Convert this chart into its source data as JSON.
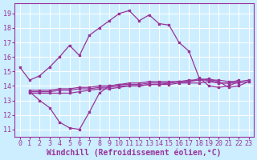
{
  "background_color": "#cceeff",
  "grid_color": "#ffffff",
  "line_color": "#993399",
  "xlabel": "Windchill (Refroidissement éolien,°C)",
  "xlabel_fontsize": 7.0,
  "tick_fontsize": 6.0,
  "yticks": [
    11,
    12,
    13,
    14,
    15,
    16,
    17,
    18,
    19
  ],
  "ylim": [
    10.5,
    19.7
  ],
  "xlim": [
    -0.5,
    23.5
  ],
  "xticks": [
    0,
    1,
    2,
    3,
    4,
    5,
    6,
    7,
    8,
    9,
    10,
    11,
    12,
    13,
    14,
    15,
    16,
    17,
    18,
    19,
    20,
    21,
    22,
    23
  ],
  "series": [
    [
      15.3,
      14.4,
      14.7,
      15.3,
      16.0,
      16.8,
      16.1,
      17.5,
      18.0,
      18.5,
      19.0,
      19.2,
      18.5,
      18.9,
      18.3,
      18.2,
      17.0,
      16.4,
      14.6,
      14.0,
      13.9,
      14.0,
      14.3,
      null
    ],
    [
      null,
      13.6,
      13.0,
      12.5,
      11.5,
      11.1,
      11.0,
      12.2,
      13.5,
      14.0,
      14.1,
      14.2,
      14.2,
      14.3,
      14.3,
      14.3,
      14.3,
      14.4,
      14.4,
      14.5,
      14.3,
      13.9,
      14.0,
      14.3
    ],
    [
      null,
      13.7,
      13.7,
      13.7,
      13.8,
      13.8,
      13.9,
      13.9,
      14.0,
      14.0,
      14.1,
      14.1,
      14.1,
      14.2,
      14.2,
      14.2,
      14.3,
      14.3,
      14.4,
      14.4,
      14.4,
      14.3,
      14.3,
      14.4
    ],
    [
      null,
      13.6,
      13.6,
      13.6,
      13.7,
      13.7,
      13.8,
      13.8,
      13.9,
      13.9,
      14.0,
      14.0,
      14.0,
      14.1,
      14.1,
      14.1,
      14.2,
      14.2,
      14.2,
      14.3,
      14.2,
      14.2,
      14.2,
      14.3
    ],
    [
      null,
      13.5,
      13.5,
      13.5,
      13.5,
      13.5,
      13.6,
      13.7,
      13.8,
      13.8,
      13.9,
      14.0,
      14.0,
      14.1,
      14.1,
      14.2,
      14.3,
      14.3,
      14.5,
      14.4,
      14.2,
      14.2,
      14.4,
      null
    ]
  ]
}
